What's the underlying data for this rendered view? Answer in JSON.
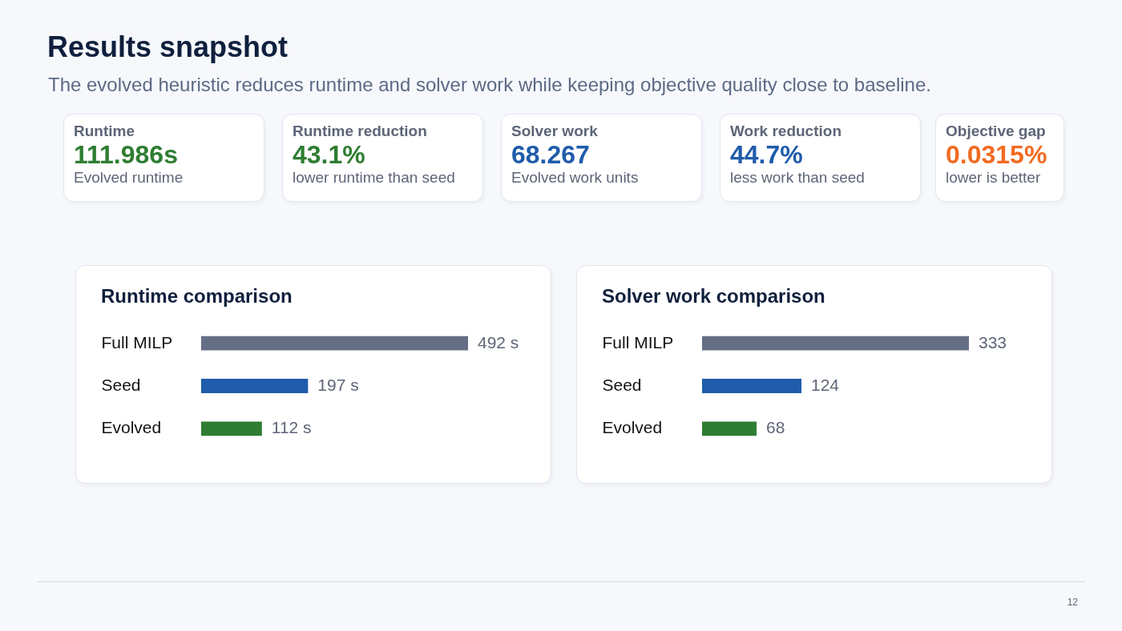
{
  "chart_data": [
    {
      "type": "other",
      "title": "Results snapshot",
      "subtitle": "The evolved heuristic reduces runtime and solver work while keeping objective quality close to baseline.",
      "annotations": [
        "12"
      ]
    },
    {
      "type": "other",
      "title": "Runtime",
      "annotations": [
        "111.986s",
        "Evolved runtime"
      ]
    },
    {
      "type": "other",
      "title": "Runtime reduction",
      "annotations": [
        "43.1%",
        "lower runtime than seed"
      ]
    },
    {
      "type": "other",
      "title": "Solver work",
      "annotations": [
        "68.267",
        "Evolved work units"
      ]
    },
    {
      "type": "other",
      "title": "Work reduction",
      "annotations": [
        "44.7%",
        "less work than seed"
      ]
    },
    {
      "type": "other",
      "title": "Objective gap",
      "annotations": [
        "0.0315%",
        "lower is better"
      ]
    },
    {
      "type": "bar",
      "orientation": "horizontal",
      "title": "Runtime comparison",
      "categories": [
        "Full MILP",
        "Seed",
        "Evolved"
      ],
      "values": [
        492,
        197,
        112
      ],
      "colors": [
        "#646f86",
        "#1f5cab",
        "#2e7d32"
      ],
      "value_labels": [
        "492 s",
        "197 s",
        "112 s"
      ]
    },
    {
      "type": "bar",
      "orientation": "horizontal",
      "title": "Solver work comparison",
      "categories": [
        "Full MILP",
        "Seed",
        "Evolved"
      ],
      "values": [
        333,
        124,
        68
      ],
      "colors": [
        "#646f86",
        "#1f5cab",
        "#2e7d32"
      ],
      "value_labels": [
        "333",
        "124",
        "68"
      ]
    }
  ]
}
